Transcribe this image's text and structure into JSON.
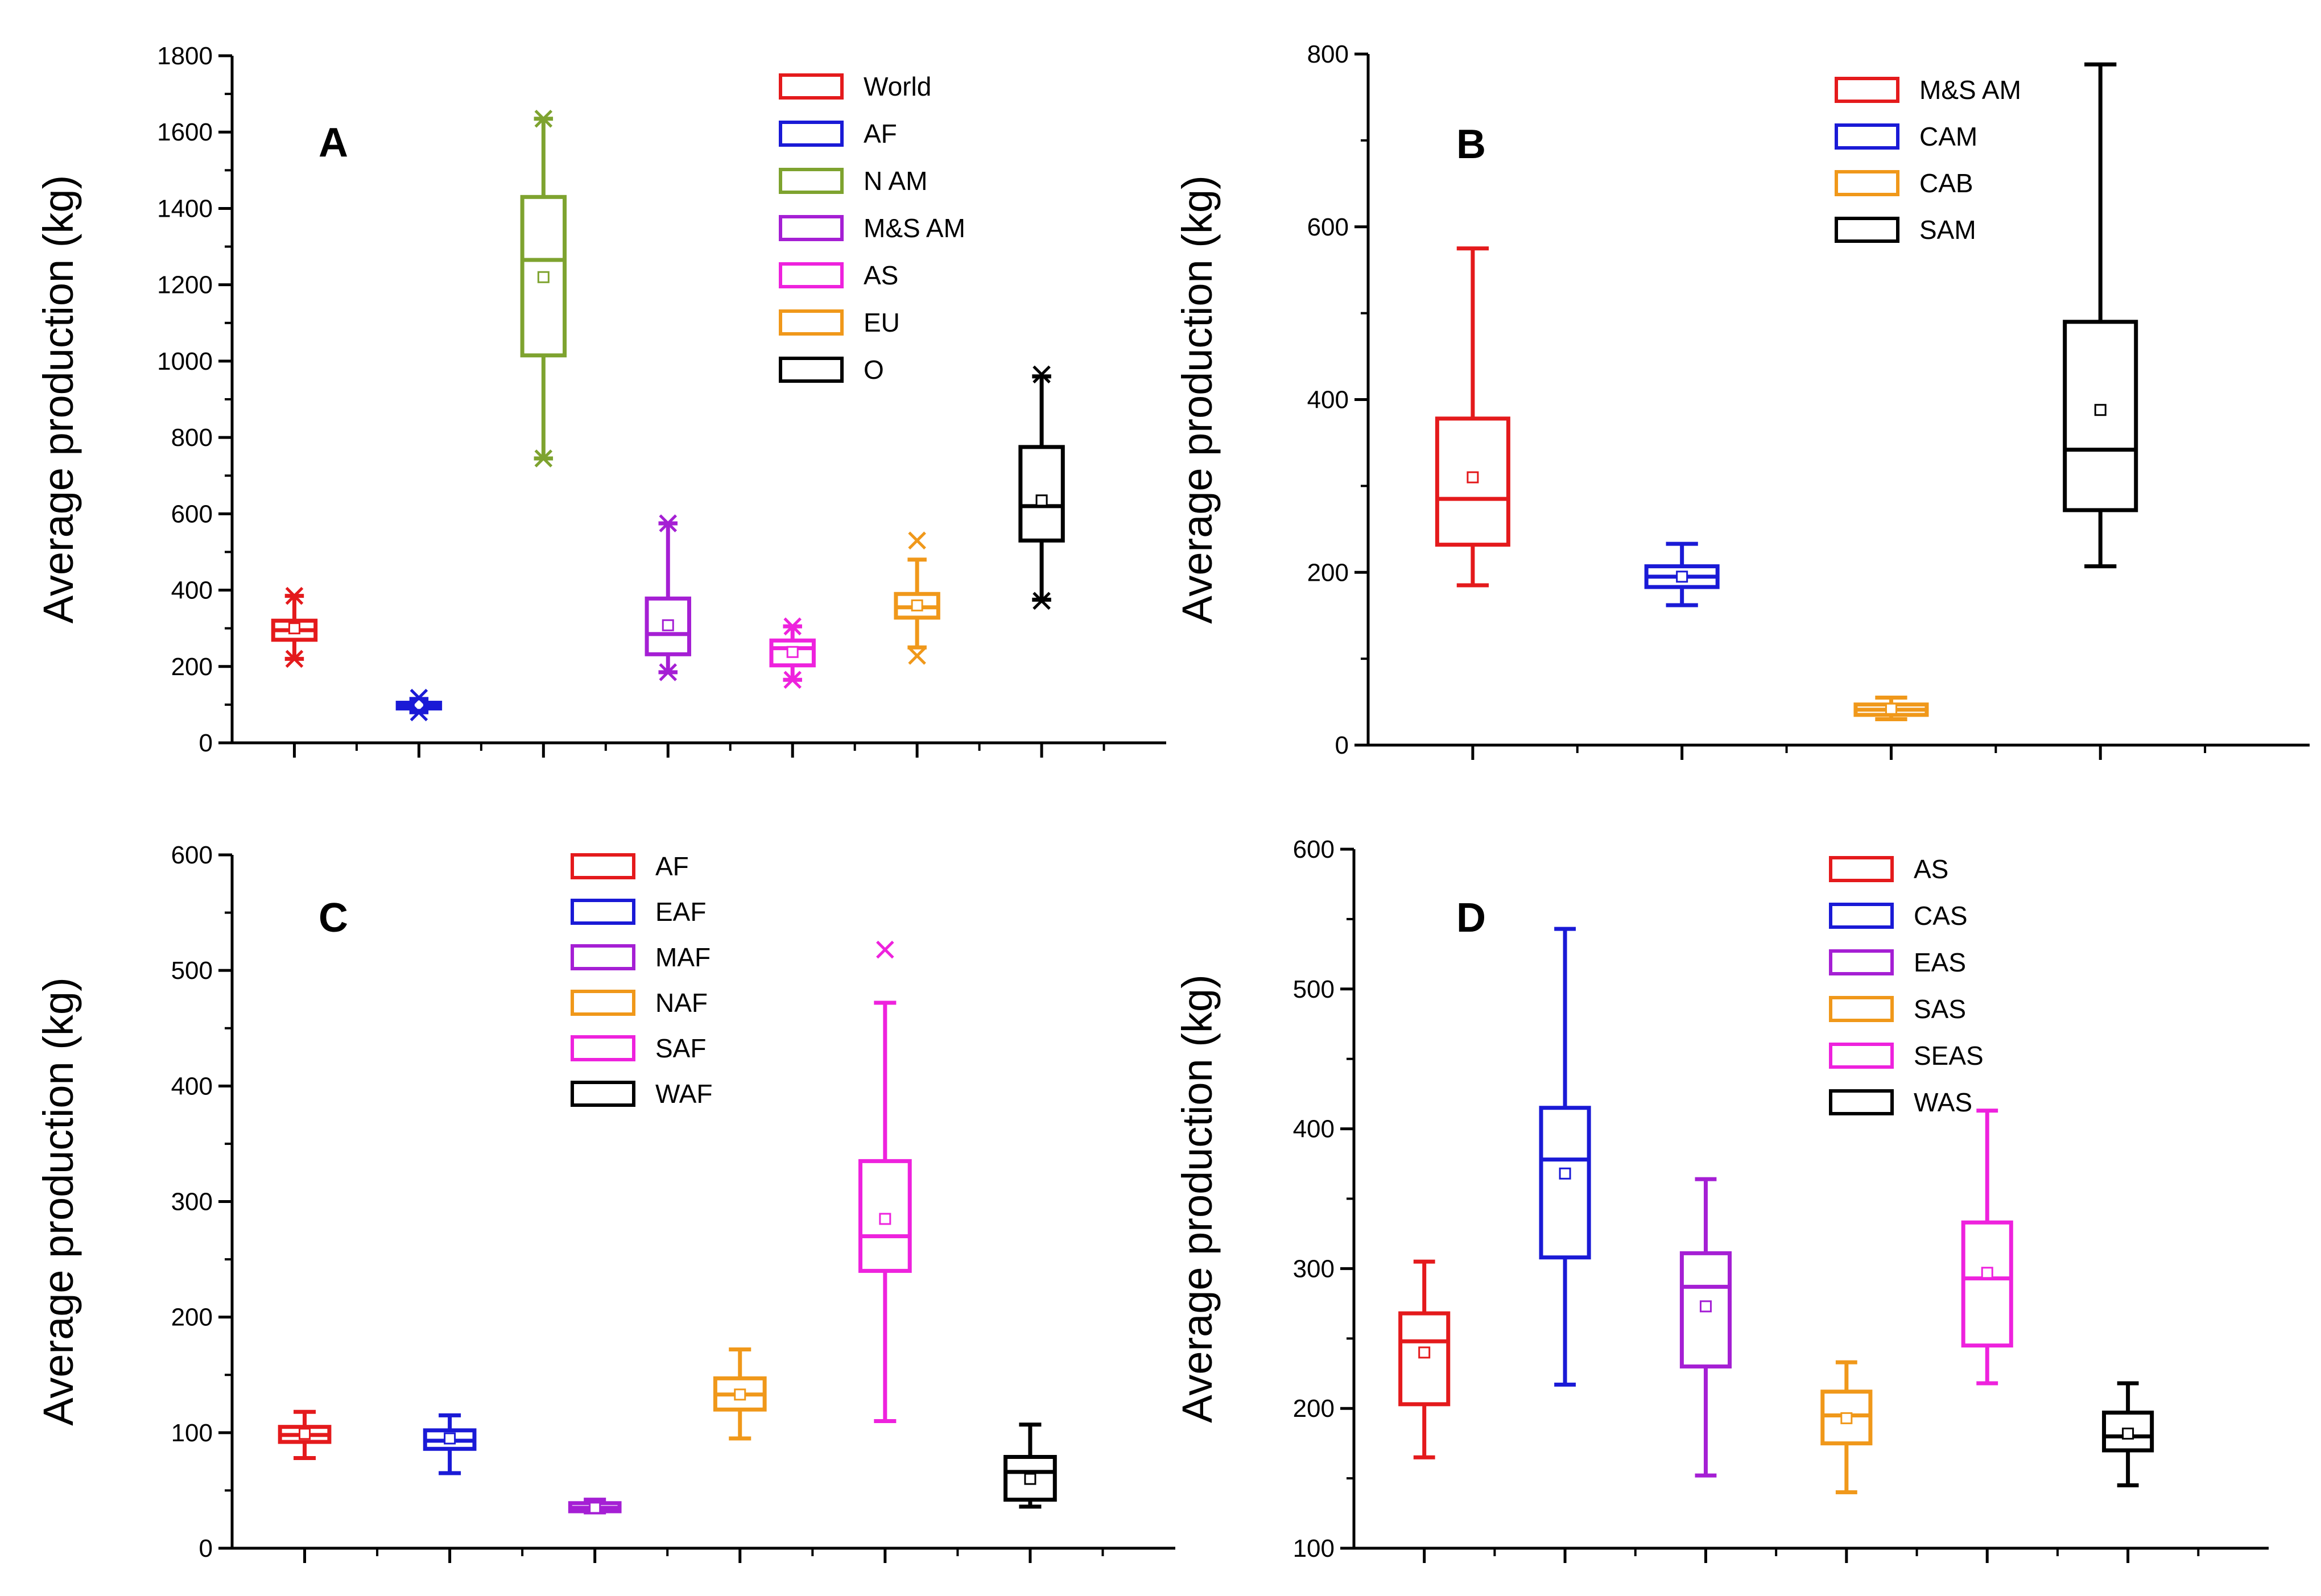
{
  "figure_title": "",
  "chart_data": [
    {
      "panel_label": "A",
      "type": "box",
      "ylabel": "Average production (kg)",
      "xlabel": "",
      "ylim": [
        0,
        1800
      ],
      "ytick_step": 200,
      "yticks": [
        "0",
        "200",
        "400",
        "600",
        "800",
        "1000",
        "1200",
        "1400",
        "1600",
        "1800"
      ],
      "grid": false,
      "legend_position": "top-right",
      "series": [
        {
          "name": "World",
          "color": "#e41a1c",
          "min": 220,
          "q1": 270,
          "median": 295,
          "q3": 320,
          "max": 385,
          "mean": 300,
          "outliers": [
            385,
            220
          ]
        },
        {
          "name": "AF",
          "color": "#1a1ad6",
          "min": 80,
          "q1": 90,
          "median": 98,
          "q3": 105,
          "max": 115,
          "mean": 100,
          "outliers": [
            118,
            80
          ]
        },
        {
          "name": "N AM",
          "color": "#7ea32f",
          "min": 745,
          "q1": 1015,
          "median": 1265,
          "q3": 1430,
          "max": 1635,
          "mean": 1220,
          "outliers": [
            1635,
            745
          ]
        },
        {
          "name": "M&S AM",
          "color": "#a51fd4",
          "min": 185,
          "q1": 232,
          "median": 285,
          "q3": 378,
          "max": 575,
          "mean": 308,
          "outliers": [
            575,
            185
          ]
        },
        {
          "name": "AS",
          "color": "#ee22dd",
          "min": 165,
          "q1": 203,
          "median": 248,
          "q3": 268,
          "max": 305,
          "mean": 238,
          "outliers": [
            305,
            165
          ]
        },
        {
          "name": "EU",
          "color": "#f0981a",
          "min": 250,
          "q1": 328,
          "median": 355,
          "q3": 390,
          "max": 480,
          "mean": 360,
          "outliers": [
            530,
            228
          ]
        },
        {
          "name": "O",
          "color": "#000000",
          "min": 375,
          "q1": 530,
          "median": 620,
          "q3": 775,
          "max": 960,
          "mean": 635,
          "outliers": [
            965,
            372
          ]
        }
      ]
    },
    {
      "panel_label": "B",
      "type": "box",
      "ylabel": "Average production (kg)",
      "xlabel": "",
      "ylim": [
        0,
        800
      ],
      "ytick_step": 200,
      "yticks": [
        "0",
        "200",
        "400",
        "600",
        "800"
      ],
      "grid": false,
      "legend_position": "top-right",
      "series": [
        {
          "name": "M&S AM",
          "color": "#e41a1c",
          "min": 185,
          "q1": 232,
          "median": 285,
          "q3": 378,
          "max": 575,
          "mean": 310,
          "outliers": []
        },
        {
          "name": "CAM",
          "color": "#1a1ad6",
          "min": 162,
          "q1": 183,
          "median": 195,
          "q3": 207,
          "max": 233,
          "mean": 195,
          "outliers": []
        },
        {
          "name": "CAB",
          "color": "#f0981a",
          "min": 30,
          "q1": 35,
          "median": 41,
          "q3": 47,
          "max": 55,
          "mean": 42,
          "outliers": []
        },
        {
          "name": "SAM",
          "color": "#000000",
          "min": 207,
          "q1": 272,
          "median": 342,
          "q3": 490,
          "max": 788,
          "mean": 388,
          "outliers": []
        }
      ]
    },
    {
      "panel_label": "C",
      "type": "box",
      "ylabel": "Average production (kg)",
      "xlabel": "",
      "ylim": [
        0,
        600
      ],
      "ytick_step": 100,
      "yticks": [
        "0",
        "100",
        "200",
        "300",
        "400",
        "500",
        "600"
      ],
      "grid": false,
      "legend_position": "top-center",
      "series": [
        {
          "name": "AF",
          "color": "#e41a1c",
          "min": 78,
          "q1": 92,
          "median": 98,
          "q3": 105,
          "max": 118,
          "mean": 99,
          "outliers": []
        },
        {
          "name": "EAF",
          "color": "#1a1ad6",
          "min": 65,
          "q1": 86,
          "median": 93,
          "q3": 102,
          "max": 115,
          "mean": 95,
          "outliers": []
        },
        {
          "name": "MAF",
          "color": "#a51fd4",
          "min": 31,
          "q1": 32,
          "median": 35,
          "q3": 39,
          "max": 42,
          "mean": 35,
          "outliers": []
        },
        {
          "name": "NAF",
          "color": "#f0981a",
          "min": 95,
          "q1": 120,
          "median": 133,
          "q3": 147,
          "max": 172,
          "mean": 133,
          "outliers": []
        },
        {
          "name": "SAF",
          "color": "#ee22dd",
          "min": 110,
          "q1": 240,
          "median": 270,
          "q3": 335,
          "max": 472,
          "mean": 285,
          "outliers": [
            518
          ]
        },
        {
          "name": "WAF",
          "color": "#000000",
          "min": 36,
          "q1": 42,
          "median": 66,
          "q3": 79,
          "max": 107,
          "mean": 60,
          "outliers": []
        }
      ]
    },
    {
      "panel_label": "D",
      "type": "box",
      "ylabel": "Average production (kg)",
      "xlabel": "",
      "ylim": [
        100,
        600
      ],
      "ytick_step": 100,
      "yticks": [
        "100",
        "200",
        "300",
        "400",
        "500",
        "600"
      ],
      "grid": false,
      "legend_position": "top-center",
      "series": [
        {
          "name": "AS",
          "color": "#e41a1c",
          "min": 165,
          "q1": 203,
          "median": 248,
          "q3": 268,
          "max": 305,
          "mean": 240,
          "outliers": []
        },
        {
          "name": "CAS",
          "color": "#1a1ad6",
          "min": 217,
          "q1": 308,
          "median": 378,
          "q3": 415,
          "max": 543,
          "mean": 368,
          "outliers": []
        },
        {
          "name": "EAS",
          "color": "#a51fd4",
          "min": 152,
          "q1": 230,
          "median": 287,
          "q3": 311,
          "max": 364,
          "mean": 273,
          "outliers": []
        },
        {
          "name": "SAS",
          "color": "#f0981a",
          "min": 140,
          "q1": 175,
          "median": 195,
          "q3": 212,
          "max": 233,
          "mean": 193,
          "outliers": []
        },
        {
          "name": "SEAS",
          "color": "#ee22dd",
          "min": 218,
          "q1": 245,
          "median": 293,
          "q3": 333,
          "max": 413,
          "mean": 297,
          "outliers": []
        },
        {
          "name": "WAS",
          "color": "#000000",
          "min": 145,
          "q1": 170,
          "median": 180,
          "q3": 197,
          "max": 218,
          "mean": 182,
          "outliers": []
        }
      ]
    }
  ]
}
